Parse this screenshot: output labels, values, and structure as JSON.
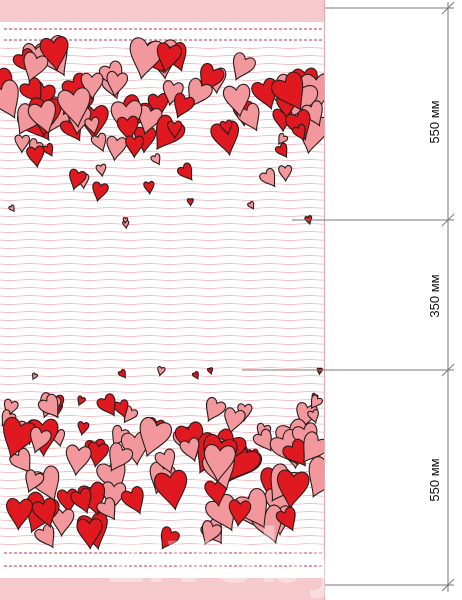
{
  "colors": {
    "border_pink": "#f6c9cd",
    "line_pink": "#f3b3b9",
    "heart_red": "#e0181f",
    "heart_pink": "#f2989d",
    "outline": "#2a1a1a",
    "dim_line": "#777777"
  },
  "dimensions": [
    {
      "label": "550 мм"
    },
    {
      "label": "350 мм"
    },
    {
      "label": "550 мм"
    }
  ],
  "watermark": "zivoby"
}
